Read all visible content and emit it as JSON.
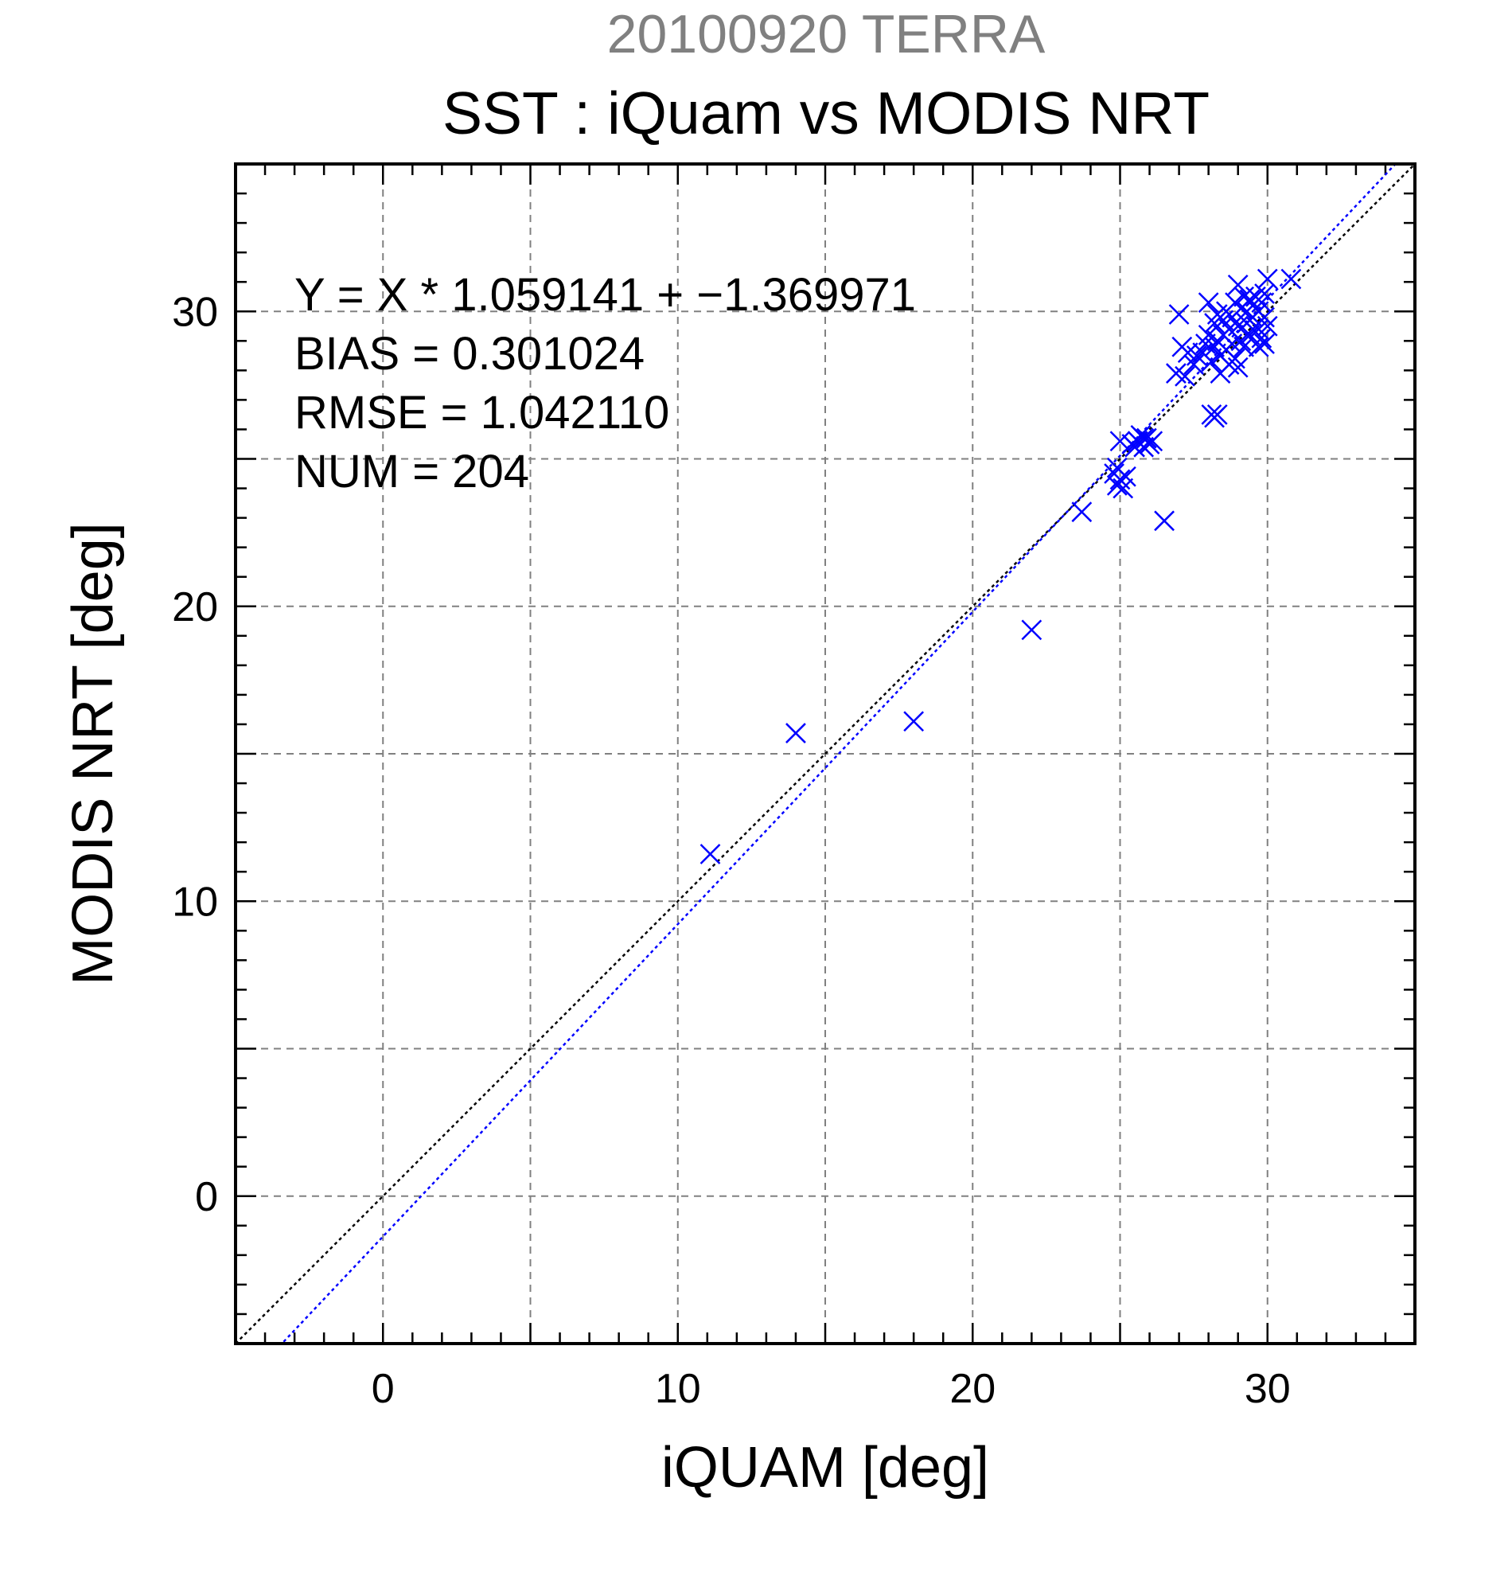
{
  "chart_data": {
    "type": "scatter",
    "title": "20100920 TERRA",
    "subtitle": "SST : iQuam vs MODIS NRT",
    "xlabel": "iQUAM [deg]",
    "ylabel": "MODIS NRT [deg]",
    "xlim": [
      -5,
      35
    ],
    "ylim": [
      -5,
      35
    ],
    "xticks": [
      0,
      10,
      20,
      30
    ],
    "yticks": [
      0,
      10,
      20,
      30
    ],
    "grid": true,
    "colors": {
      "points": "#0000ff",
      "fit_line": "#0000ff",
      "one_to_one": "#000000",
      "grid": "#808080",
      "title": "#808080"
    },
    "annotations": [
      "Y = X * 1.059141 + −1.369971",
      "BIAS = 0.301024",
      "RMSE = 1.042110",
      "NUM = 204"
    ],
    "fit": {
      "slope": 1.059141,
      "intercept": -1.369971
    },
    "series": [
      {
        "marker": "x",
        "points": [
          [
            11.1,
            11.6
          ],
          [
            14.0,
            15.7
          ],
          [
            18.0,
            16.1
          ],
          [
            22.0,
            19.2
          ],
          [
            23.7,
            23.2
          ],
          [
            26.5,
            22.9
          ],
          [
            24.8,
            24.5
          ],
          [
            24.9,
            24.1
          ],
          [
            25.0,
            24.3
          ],
          [
            25.1,
            24.0
          ],
          [
            24.9,
            24.7
          ],
          [
            25.2,
            24.4
          ],
          [
            25.0,
            25.6
          ],
          [
            25.4,
            25.5
          ],
          [
            25.6,
            25.6
          ],
          [
            25.8,
            25.4
          ],
          [
            25.9,
            25.7
          ],
          [
            26.0,
            25.5
          ],
          [
            25.7,
            25.8
          ],
          [
            26.1,
            25.6
          ],
          [
            25.5,
            25.4
          ],
          [
            25.8,
            25.7
          ],
          [
            26.9,
            27.9
          ],
          [
            27.0,
            29.9
          ],
          [
            27.1,
            28.8
          ],
          [
            27.3,
            28.6
          ],
          [
            27.2,
            27.8
          ],
          [
            27.5,
            28.2
          ],
          [
            27.6,
            28.5
          ],
          [
            27.8,
            28.6
          ],
          [
            27.9,
            28.9
          ],
          [
            28.0,
            30.3
          ],
          [
            28.0,
            29.2
          ],
          [
            28.1,
            28.3
          ],
          [
            28.2,
            29.6
          ],
          [
            28.2,
            28.8
          ],
          [
            28.3,
            29.9
          ],
          [
            28.3,
            29.0
          ],
          [
            28.4,
            28.5
          ],
          [
            28.4,
            27.9
          ],
          [
            28.5,
            29.2
          ],
          [
            28.5,
            29.7
          ],
          [
            28.6,
            28.7
          ],
          [
            28.6,
            30.0
          ],
          [
            28.7,
            28.2
          ],
          [
            28.7,
            29.4
          ],
          [
            28.8,
            29.8
          ],
          [
            28.8,
            28.9
          ],
          [
            28.9,
            30.3
          ],
          [
            28.9,
            28.4
          ],
          [
            29.0,
            30.9
          ],
          [
            29.0,
            29.5
          ],
          [
            29.0,
            28.1
          ],
          [
            29.1,
            30.1
          ],
          [
            29.1,
            29.0
          ],
          [
            29.2,
            30.5
          ],
          [
            29.2,
            28.8
          ],
          [
            29.3,
            29.6
          ],
          [
            29.3,
            30.0
          ],
          [
            29.4,
            30.4
          ],
          [
            29.4,
            29.2
          ],
          [
            29.5,
            29.8
          ],
          [
            29.5,
            30.2
          ],
          [
            29.6,
            30.5
          ],
          [
            29.6,
            29.5
          ],
          [
            29.7,
            30.0
          ],
          [
            29.7,
            29.4
          ],
          [
            29.8,
            30.3
          ],
          [
            29.8,
            29.1
          ],
          [
            29.9,
            29.8
          ],
          [
            29.9,
            30.6
          ],
          [
            30.0,
            29.5
          ],
          [
            30.0,
            31.1
          ],
          [
            29.9,
            28.9
          ],
          [
            29.7,
            28.8
          ],
          [
            28.1,
            26.5
          ],
          [
            28.2,
            26.4
          ],
          [
            28.3,
            26.5
          ],
          [
            30.8,
            31.1
          ]
        ]
      }
    ]
  }
}
